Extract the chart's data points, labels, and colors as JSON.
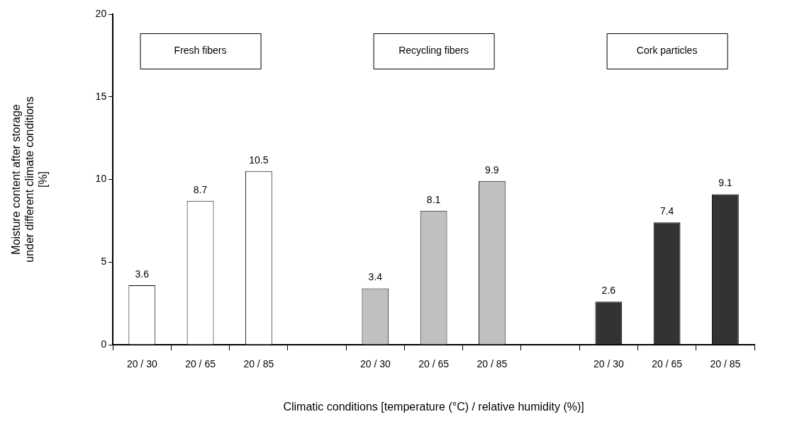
{
  "chart_data": {
    "type": "bar",
    "xlabel": "Climatic conditions [temperature (°C) / relative humidity (%)]",
    "ylabel": "Moisture content after storage\nunder different climate conditions\n[%]",
    "categories": [
      "20 / 30",
      "20 / 65",
      "20 / 85",
      null,
      "20 / 30",
      "20 / 65",
      "20 / 85",
      null,
      "20 / 30",
      "20 / 65",
      "20 / 85"
    ],
    "values": [
      3.6,
      8.7,
      10.5,
      null,
      3.4,
      8.1,
      9.9,
      null,
      2.6,
      7.4,
      9.1
    ],
    "colors": [
      "#ffffff",
      "#ffffff",
      "#ffffff",
      null,
      "#c0c0c0",
      "#c0c0c0",
      "#c0c0c0",
      null,
      "#333333",
      "#333333",
      "#333333"
    ],
    "ylim": [
      0,
      20
    ],
    "yticks": [
      0,
      5,
      10,
      15,
      20
    ],
    "grid": false,
    "legend": false,
    "data_labels": true,
    "annotations": [
      "Fresh fibers",
      "Recycling fibers",
      "Cork particles"
    ]
  }
}
